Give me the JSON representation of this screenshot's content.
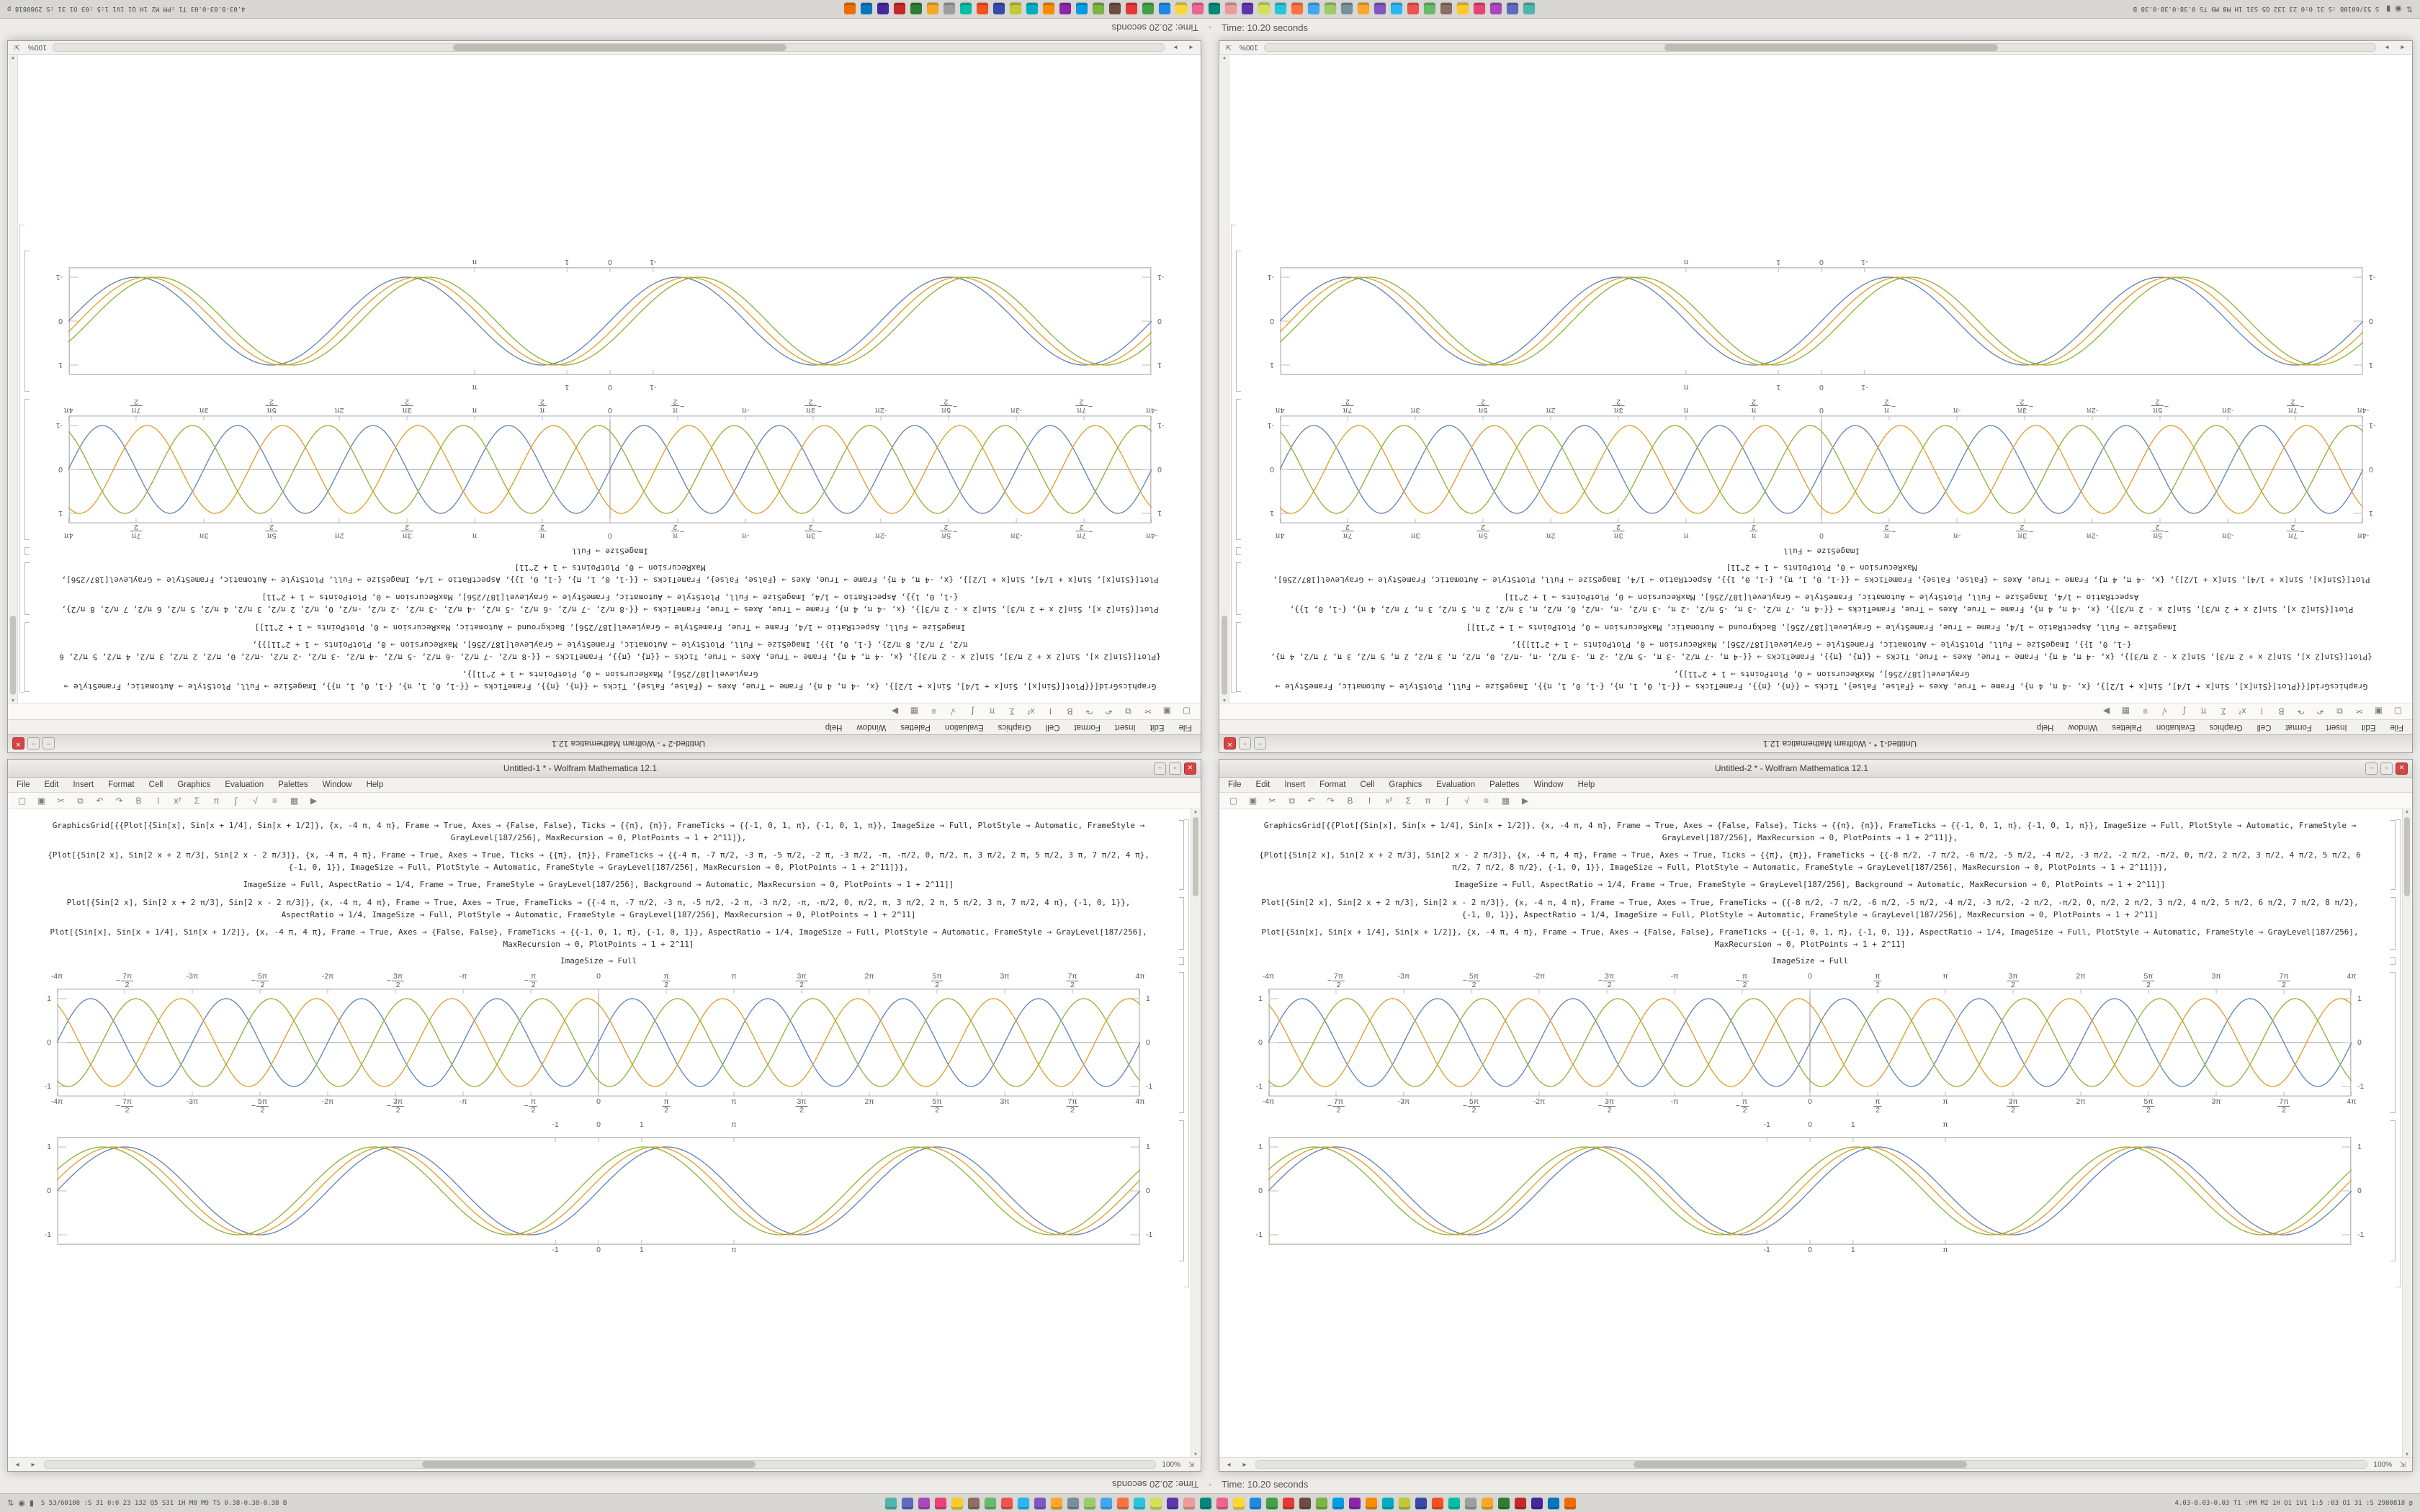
{
  "timers": {
    "divider": "·",
    "rotated_screen": {
      "rotated_text": "Time: 10.20 seconds",
      "upright_text": "Time: 20.20 seconds"
    },
    "normal_screen": {
      "rotated_text": "Time: 20.20 seconds",
      "upright_text": "Time: 10.20 seconds"
    }
  },
  "panel": {
    "tray_icons": [
      {
        "name": "network-icon",
        "glyph": "⇅"
      },
      {
        "name": "volume-icon",
        "glyph": "◉"
      },
      {
        "name": "battery-icon",
        "glyph": "▮"
      }
    ],
    "left_stats": "S 53/60108 :S 31 0:0 23 132 Q5 S31 1H M8 M9 TS 0.38-0.38-0.38 B",
    "right_stats": "4.03-8.03-0.03 T1 :PM M2 1H Q1 1V1 1:5 :03 O1 31 :S 2980818 p",
    "icons": [
      "#4db6ac",
      "#5c6bc0",
      "#ab47bc",
      "#ec407a",
      "#ffca28",
      "#8d6e63",
      "#66bb6a",
      "#ef5350",
      "#29b6f6",
      "#7e57c2",
      "#ffa726",
      "#78909c",
      "#9ccc65",
      "#42a5f5",
      "#ff7043",
      "#26c6da",
      "#d4e157",
      "#5e35b1",
      "#ef9a9a",
      "#00897b",
      "#f06292",
      "#fdd835",
      "#1e88e5",
      "#43a047",
      "#e53935",
      "#6d4c41",
      "#7cb342",
      "#039be5",
      "#8e24aa",
      "#fb8c00",
      "#00acc1",
      "#c0ca33",
      "#3949ab",
      "#f4511e",
      "#00bfa5",
      "#9e9e9e",
      "#f9a825",
      "#2e7d32",
      "#c62828",
      "#4527a0",
      "#0277bd",
      "#ef6c00"
    ]
  },
  "chrome": {
    "menu": [
      "File",
      "Edit",
      "Insert",
      "Format",
      "Cell",
      "Graphics",
      "Evaluation",
      "Palettes",
      "Window",
      "Help"
    ],
    "toolbar": [
      {
        "name": "new-notebook-icon",
        "glyph": "▢"
      },
      {
        "name": "open-icon",
        "glyph": "▣"
      },
      {
        "name": "cut-icon",
        "glyph": "✂"
      },
      {
        "name": "copy-icon",
        "glyph": "⧉"
      },
      {
        "name": "undo-icon",
        "glyph": "↶"
      },
      {
        "name": "redo-icon",
        "glyph": "↷"
      },
      {
        "name": "bold-icon",
        "glyph": "B"
      },
      {
        "name": "italic-icon",
        "glyph": "I"
      },
      {
        "name": "superscript-icon",
        "glyph": "x²"
      },
      {
        "name": "sum-icon",
        "glyph": "Σ"
      },
      {
        "name": "pi-icon",
        "glyph": "π"
      },
      {
        "name": "integral-icon",
        "glyph": "∫"
      },
      {
        "name": "sqrt-icon",
        "glyph": "√"
      },
      {
        "name": "align-icon",
        "glyph": "≡"
      },
      {
        "name": "grid-icon",
        "glyph": "▦"
      },
      {
        "name": "evaluate-icon",
        "glyph": "▶"
      }
    ],
    "window_buttons": [
      {
        "name": "minimize-button",
        "glyph": "–"
      },
      {
        "name": "maximize-button",
        "glyph": "▫"
      },
      {
        "name": "close-button",
        "glyph": "✕"
      }
    ],
    "zoom": "100%",
    "resize_grip": "⇲",
    "scroll_left": "◂",
    "scroll_right": "▸",
    "scroll_up": "▴",
    "scroll_down": "▾"
  },
  "windows": [
    {
      "title": "Untitled-1 * - Wolfram Mathematica 12.1",
      "cells": [
        {
          "type": "code",
          "paragraphs": [
            "GraphicsGrid[{{Plot[{Sin[x], Sin[x + 1/4], Sin[x + 1/2]}, {x, -4 π, 4 π}, Frame → True, Axes → {False, False}, Ticks → {{π}, {π}}, FrameTicks → {{-1, 0, 1, π}, {-1, 0, 1, π}}, ImageSize → Full, PlotStyle → Automatic, FrameStyle → GrayLevel[187/256], MaxRecursion → 0, PlotPoints → 1 + 2^11]},",
            "{Plot[{Sin[2 x], Sin[2 x + 2 π/3], Sin[2 x - 2 π/3]}, {x, -4 π, 4 π}, Frame → True, Axes → True, Ticks → {{π}, {π}}, FrameTicks → {{-4 π, -7 π/2, -3 π, -5 π/2, -2 π, -3 π/2, -π, -π/2, 0, π/2, π, 3 π/2, 2 π, 5 π/2, 3 π, 7 π/2, 4 π}, {-1, 0, 1}}, ImageSize → Full, PlotStyle → Automatic, FrameStyle → GrayLevel[187/256], MaxRecursion → 0, PlotPoints → 1 + 2^11]}},",
            "ImageSize → Full, AspectRatio → 1/4, Frame → True, FrameStyle → GrayLevel[187/256], Background → Automatic, MaxRecursion → 0, PlotPoints → 1 + 2^11]]"
          ]
        },
        {
          "type": "code",
          "paragraphs": [
            "Plot[{Sin[2 x], Sin[2 x + 2 π/3], Sin[2 x - 2 π/3]}, {x, -4 π, 4 π}, Frame → True, Axes → True, FrameTicks → {{-4 π, -7 π/2, -3 π, -5 π/2, -2 π, -3 π/2, -π, -π/2, 0, π/2, π, 3 π/2, 2 π, 5 π/2, 3 π, 7 π/2, 4 π}, {-1, 0, 1}}, AspectRatio → 1/4, ImageSize → Full, PlotStyle → Automatic, FrameStyle → GrayLevel[187/256], MaxRecursion → 0, PlotPoints → 1 + 2^11]",
            "Plot[{Sin[x], Sin[x + 1/4], Sin[x + 1/2]}, {x, -4 π, 4 π}, Frame → True, Axes → {False, False}, FrameTicks → {{-1, 0, 1, π}, {-1, 0, 1}}, AspectRatio → 1/4, ImageSize → Full, PlotStyle → Automatic, FrameStyle → GrayLevel[187/256], MaxRecursion → 0, PlotPoints → 1 + 2^11]"
          ]
        },
        {
          "type": "label",
          "text": "ImageSize → Full"
        },
        {
          "type": "chart",
          "chart": 0
        },
        {
          "type": "chart",
          "chart": 1
        }
      ]
    },
    {
      "title": "Untitled-2 * - Wolfram Mathematica 12.1",
      "cells": [
        {
          "type": "code",
          "paragraphs": [
            "GraphicsGrid[{{Plot[{Sin[x], Sin[x + 1/4], Sin[x + 1/2]}, {x, -4 π, 4 π}, Frame → True, Axes → {False, False}, Ticks → {{π}, {π}}, FrameTicks → {{-1, 0, 1, π}, {-1, 0, 1, π}}, ImageSize → Full, PlotStyle → Automatic, FrameStyle → GrayLevel[187/256], MaxRecursion → 0, PlotPoints → 1 + 2^11]},",
            "{Plot[{Sin[2 x], Sin[2 x + 2 π/3], Sin[2 x - 2 π/3]}, {x, -4 π, 4 π}, Frame → True, Axes → True, Ticks → {{π}, {π}}, FrameTicks → {{-8 π/2, -7 π/2, -6 π/2, -5 π/2, -4 π/2, -3 π/2, -2 π/2, -π/2, 0, π/2, 2 π/2, 3 π/2, 4 π/2, 5 π/2, 6 π/2, 7 π/2, 8 π/2}, {-1, 0, 1}}, ImageSize → Full, PlotStyle → Automatic, FrameStyle → GrayLevel[187/256], MaxRecursion → 0, PlotPoints → 1 + 2^11]}},",
            "ImageSize → Full, AspectRatio → 1/4, Frame → True, FrameStyle → GrayLevel[187/256], Background → Automatic, MaxRecursion → 0, PlotPoints → 1 + 2^11]]"
          ]
        },
        {
          "type": "code",
          "paragraphs": [
            "Plot[{Sin[2 x], Sin[2 x + 2 π/3], Sin[2 x - 2 π/3]}, {x, -4 π, 4 π}, Frame → True, Axes → True, FrameTicks → {{-8 π/2, -7 π/2, -6 π/2, -5 π/2, -4 π/2, -3 π/2, -2 π/2, -π/2, 0, π/2, 2 π/2, 3 π/2, 4 π/2, 5 π/2, 6 π/2, 7 π/2, 8 π/2}, {-1, 0, 1}}, AspectRatio → 1/4, ImageSize → Full, PlotStyle → Automatic, FrameStyle → GrayLevel[187/256], MaxRecursion → 0, PlotPoints → 1 + 2^11]",
            "Plot[{Sin[x], Sin[x + 1/4], Sin[x + 1/2]}, {x, -4 π, 4 π}, Frame → True, Axes → {False, False}, FrameTicks → {{-1, 0, 1, π}, {-1, 0, 1}}, AspectRatio → 1/4, ImageSize → Full, PlotStyle → Automatic, FrameStyle → GrayLevel[187/256], MaxRecursion → 0, PlotPoints → 1 + 2^11]"
          ]
        },
        {
          "type": "label",
          "text": "ImageSize → Full"
        },
        {
          "type": "chart",
          "chart": 0
        },
        {
          "type": "chart",
          "chart": 1
        }
      ]
    }
  ],
  "chart_data": [
    {
      "type": "line",
      "title": "",
      "description": "Braided plot of three phase-shifted sine curves Sin[2x], Sin[2x+2π/3], Sin[2x-2π/3]",
      "x_min": -12.566,
      "x_max": 12.566,
      "y_min": -1.17,
      "y_max": 1.17,
      "axes": true,
      "grid": false,
      "frame_color": "#bcbbb7",
      "axis_color": "#98978f",
      "series": [
        {
          "name": "Sin[2 x]",
          "freq": 2,
          "phase": 0,
          "amplitude": 1,
          "color": "#5e81b5"
        },
        {
          "name": "Sin[2 x + 2 π/3]",
          "freq": 2,
          "phase": 2.094,
          "amplitude": 1,
          "color": "#e09c24"
        },
        {
          "name": "Sin[2 x - 2 π/3]",
          "freq": 2,
          "phase": -2.094,
          "amplitude": 1,
          "color": "#8eb031"
        }
      ],
      "x_ticks": [
        {
          "v": -12.566,
          "label": "-4π"
        },
        {
          "v": -10.996,
          "label": "-7π/2"
        },
        {
          "v": -9.425,
          "label": "-3π"
        },
        {
          "v": -7.854,
          "label": "-5π/2"
        },
        {
          "v": -6.283,
          "label": "-2π"
        },
        {
          "v": -4.712,
          "label": "-3π/2"
        },
        {
          "v": -3.1416,
          "label": "-π"
        },
        {
          "v": -1.5708,
          "label": "-π/2"
        },
        {
          "v": 0,
          "label": "0"
        },
        {
          "v": 1.5708,
          "label": "π/2"
        },
        {
          "v": 3.1416,
          "label": "π"
        },
        {
          "v": 4.712,
          "label": "3π/2"
        },
        {
          "v": 6.283,
          "label": "2π"
        },
        {
          "v": 7.854,
          "label": "5π/2"
        },
        {
          "v": 9.425,
          "label": "3π"
        },
        {
          "v": 10.996,
          "label": "7π/2"
        },
        {
          "v": 12.566,
          "label": "4π"
        }
      ],
      "y_ticks": [
        {
          "v": 1,
          "label": "1"
        },
        {
          "v": 0,
          "label": "0"
        },
        {
          "v": -1,
          "label": "-1"
        }
      ]
    },
    {
      "type": "line",
      "title": "",
      "description": "Three slightly phase-shifted sine curves Sin[x], Sin[x+1/4], Sin[x+1/2]",
      "x_min": -12.566,
      "x_max": 12.566,
      "y_min": -1.17,
      "y_max": 1.17,
      "axes": false,
      "grid": false,
      "frame_color": "#bcbbb7",
      "axis_color": "#98978f",
      "series": [
        {
          "name": "Sin[x]",
          "freq": 1,
          "phase": 0,
          "amplitude": 1,
          "color": "#5e81b5"
        },
        {
          "name": "Sin[x + 1/4]",
          "freq": 1,
          "phase": 0.25,
          "amplitude": 1,
          "color": "#e09c24"
        },
        {
          "name": "Sin[x + 1/2]",
          "freq": 1,
          "phase": 0.5,
          "amplitude": 1,
          "color": "#8eb031"
        }
      ],
      "x_ticks": [
        {
          "v": -1,
          "label": "-1"
        },
        {
          "v": 0,
          "label": "0"
        },
        {
          "v": 1,
          "label": "1"
        },
        {
          "v": 3.1416,
          "label": "π"
        }
      ],
      "y_ticks": [
        {
          "v": 1,
          "label": "1"
        },
        {
          "v": 0,
          "label": "0"
        },
        {
          "v": -1,
          "label": "-1"
        }
      ]
    }
  ]
}
